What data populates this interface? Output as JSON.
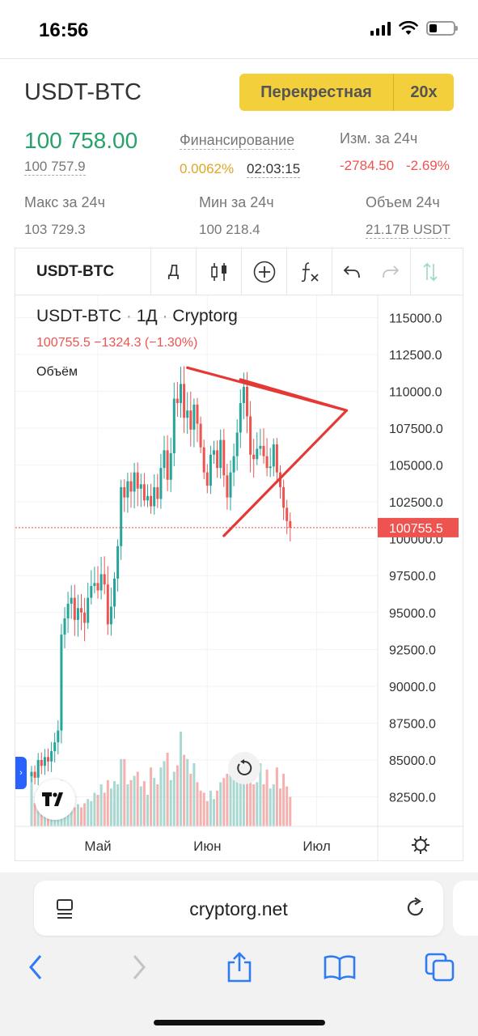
{
  "status": {
    "time": "16:56"
  },
  "header": {
    "pair": "USDT-BTC",
    "margin_mode": "Перекрестная",
    "leverage": "20x"
  },
  "stats": {
    "last_price": "100 758.00",
    "mark_price": "100 757.9",
    "funding_label": "Финансирование",
    "funding_rate": "0.0062%",
    "funding_timer": "02:03:15",
    "change_label": "Изм. за 24ч",
    "change_abs": "-2784.50",
    "change_pct": "-2.69%",
    "high_label": "Макс за 24ч",
    "high_value": "103 729.3",
    "low_label": "Мин за 24ч",
    "low_value": "100 218.4",
    "volume_label": "Объем 24ч",
    "volume_value": "21.17B USDT"
  },
  "toolbar": {
    "symbol": "USDT-BTC",
    "interval": "Д",
    "icons": [
      "candles-icon",
      "add-indicator-icon",
      "fx-icon",
      "undo-icon",
      "redo-icon",
      "compare-icon"
    ]
  },
  "legend": {
    "symbol": "USDT-BTC",
    "interval": "1Д",
    "source": "Cryptorg",
    "values": "100755.5  −1324.3 (−1.30%)",
    "volume_label": "Объём"
  },
  "chart_data": {
    "type": "candlestick",
    "y_ticks": [
      "115000.0",
      "112500.0",
      "110000.0",
      "107500.0",
      "105000.0",
      "102500.0",
      "100000.0",
      "97500.0",
      "95000.0",
      "92500.0",
      "90000.0",
      "87500.0",
      "85000.0",
      "82500.0"
    ],
    "x_ticks": [
      "Май",
      "Июн",
      "Июл"
    ],
    "ylim": [
      80500,
      116500
    ],
    "last_price_label": "100755.5",
    "last_price": 100755.5,
    "up_color": "#26a69a",
    "down_color": "#ef5350",
    "closes": [
      84200,
      83800,
      85000,
      84600,
      85200,
      84900,
      85600,
      86200,
      87000,
      93500,
      94600,
      95600,
      96000,
      94500,
      95300,
      95000,
      94300,
      96000,
      96800,
      97000,
      96500,
      97600,
      96900,
      94200,
      95400,
      97300,
      99500,
      103500,
      102800,
      103900,
      103200,
      104500,
      103400,
      103700,
      102600,
      102900,
      102200,
      103500,
      102700,
      104800,
      106000,
      104000,
      105800,
      109500,
      109200,
      110500,
      108200,
      108700,
      107400,
      109100,
      107800,
      106200,
      104500,
      103600,
      105700,
      106000,
      104800,
      106700,
      104300,
      102800,
      104500,
      105600,
      107200,
      109200,
      110300,
      108300,
      105700,
      105400,
      106100,
      106300,
      105600,
      104800,
      104900,
      106400,
      104500,
      103500,
      102100,
      101200,
      100755
    ],
    "volumes": [
      50,
      22,
      35,
      26,
      30,
      25,
      28,
      22,
      40,
      44,
      30,
      24,
      28,
      18,
      21,
      18,
      22,
      26,
      24,
      32,
      30,
      40,
      32,
      44,
      36,
      43,
      40,
      64,
      64,
      40,
      44,
      48,
      52,
      38,
      43,
      30,
      56,
      46,
      40,
      56,
      62,
      70,
      44,
      52,
      58,
      90,
      68,
      64,
      50,
      60,
      42,
      34,
      32,
      24,
      34,
      26,
      34,
      42,
      46,
      50,
      50,
      60,
      52,
      66,
      60,
      60,
      54,
      40,
      42,
      60,
      40,
      54,
      36,
      40,
      56,
      36,
      50,
      38,
      28
    ],
    "drawings": [
      {
        "type": "line",
        "from": {
          "bar": 47,
          "price": 111600
        },
        "to": {
          "bar": 95,
          "price": 108700
        }
      },
      {
        "type": "line",
        "from": {
          "bar": 58,
          "price": 100200
        },
        "to": {
          "bar": 95,
          "price": 108700
        }
      },
      {
        "type": "line",
        "from": {
          "bar": 63,
          "price": 110800
        },
        "to": {
          "bar": 95,
          "price": 108700
        }
      }
    ]
  },
  "browser": {
    "url": "cryptorg.net"
  }
}
